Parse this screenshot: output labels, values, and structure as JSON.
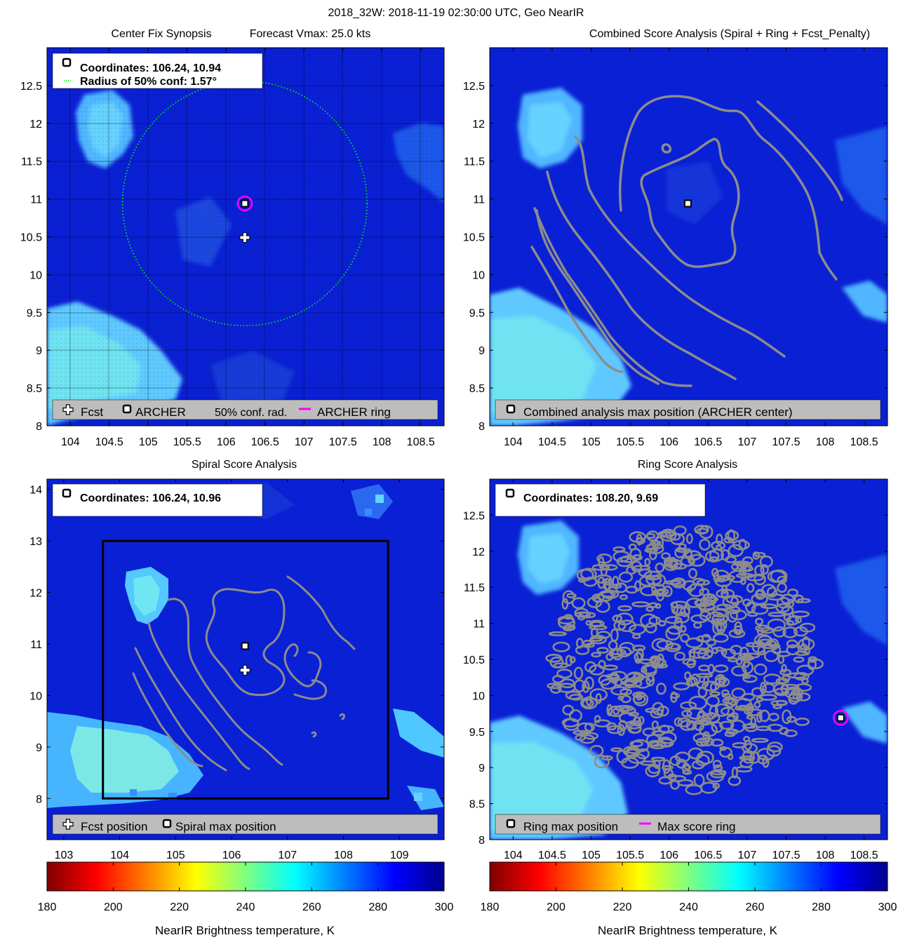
{
  "figure_title": "2018_32W: 2018-11-19 02:30:00 UTC, Geo NearIR",
  "colormap": [
    "#7f0000",
    "#ff0000",
    "#ff7f00",
    "#ffff00",
    "#7fff7f",
    "#00ffff",
    "#007fff",
    "#0000ff",
    "#00008f"
  ],
  "chart_data": [
    {
      "id": "center-fix",
      "type": "heatmap",
      "title_left": "Center Fix Synopsis",
      "title_right": "Forecast Vmax: 25.0 kts",
      "xlim": [
        103.7,
        108.8
      ],
      "ylim": [
        8.0,
        13.0
      ],
      "xticks": [
        "104",
        "104.5",
        "105",
        "105.5",
        "106",
        "106.5",
        "107",
        "107.5",
        "108",
        "108.5"
      ],
      "xtick_values": [
        104,
        104.5,
        105,
        105.5,
        106,
        106.5,
        107,
        107.5,
        108,
        108.5
      ],
      "yticks": [
        "8",
        "8.5",
        "9",
        "9.5",
        "10",
        "10.5",
        "11",
        "11.5",
        "12",
        "12.5"
      ],
      "ytick_values": [
        8,
        8.5,
        9,
        9.5,
        10,
        10.5,
        11,
        11.5,
        12,
        12.5
      ],
      "info_lines": [
        "Coordinates: 106.24, 10.94",
        "Radius of 50% conf: 1.57°"
      ],
      "legend": [
        "Fcst",
        "ARCHER",
        "50% conf. rad.",
        "ARCHER ring"
      ],
      "fcst_position": [
        106.24,
        10.49
      ],
      "archer_center": [
        106.24,
        10.94
      ],
      "conf_radius_deg": 1.57,
      "ring_color": "#ff00ff",
      "conf_color": "#00ff00"
    },
    {
      "id": "combined",
      "type": "heatmap",
      "title": "Combined Score Analysis (Spiral + Ring + Fcst_Penalty)",
      "xlim": [
        103.7,
        108.8
      ],
      "ylim": [
        8.0,
        13.0
      ],
      "xticks": [
        "104",
        "104.5",
        "105",
        "105.5",
        "106",
        "106.5",
        "107",
        "107.5",
        "108",
        "108.5"
      ],
      "xtick_values": [
        104,
        104.5,
        105,
        105.5,
        106,
        106.5,
        107,
        107.5,
        108,
        108.5
      ],
      "yticks": [
        "8",
        "8.5",
        "9",
        "9.5",
        "10",
        "10.5",
        "11",
        "11.5",
        "12",
        "12.5"
      ],
      "ytick_values": [
        8,
        8.5,
        9,
        9.5,
        10,
        10.5,
        11,
        11.5,
        12,
        12.5
      ],
      "legend": [
        "Combined analysis max position (ARCHER center)"
      ],
      "max_position": [
        106.24,
        10.94
      ]
    },
    {
      "id": "spiral",
      "type": "heatmap",
      "title": "Spiral Score Analysis",
      "xlim": [
        102.7,
        109.8
      ],
      "ylim": [
        7.2,
        14.2
      ],
      "xticks": [
        "103",
        "104",
        "105",
        "106",
        "107",
        "108",
        "109"
      ],
      "xtick_values": [
        103,
        104,
        105,
        106,
        107,
        108,
        109
      ],
      "yticks": [
        "8",
        "9",
        "10",
        "11",
        "12",
        "13",
        "14"
      ],
      "ytick_values": [
        8,
        9,
        10,
        11,
        12,
        13,
        14
      ],
      "info_lines": [
        "Coordinates: 106.24, 10.96"
      ],
      "legend": [
        "Fcst position",
        "Spiral max position"
      ],
      "fcst_position": [
        106.24,
        10.49
      ],
      "max_position": [
        106.24,
        10.96
      ],
      "search_box": [
        103.7,
        108.8,
        8.0,
        13.0
      ]
    },
    {
      "id": "ring",
      "type": "heatmap",
      "title": "Ring Score Analysis",
      "xlim": [
        103.7,
        108.8
      ],
      "ylim": [
        8.0,
        13.0
      ],
      "xticks": [
        "104",
        "104.5",
        "105",
        "105.5",
        "106",
        "106.5",
        "107",
        "107.5",
        "108",
        "108.5"
      ],
      "xtick_values": [
        104,
        104.5,
        105,
        105.5,
        106,
        106.5,
        107,
        107.5,
        108,
        108.5
      ],
      "yticks": [
        "8",
        "8.5",
        "9",
        "9.5",
        "10",
        "10.5",
        "11",
        "11.5",
        "12",
        "12.5"
      ],
      "ytick_values": [
        8,
        8.5,
        9,
        9.5,
        10,
        10.5,
        11,
        11.5,
        12,
        12.5
      ],
      "info_lines": [
        "Coordinates: 108.20, 9.69"
      ],
      "legend": [
        "Ring max position",
        "Max score ring"
      ],
      "max_position": [
        108.2,
        9.69
      ],
      "ring_color": "#ff00ff"
    }
  ],
  "colorbars": [
    {
      "id": "colorbar-left",
      "ticks": [
        "180",
        "200",
        "220",
        "240",
        "260",
        "280",
        "300"
      ],
      "tick_values": [
        180,
        200,
        220,
        240,
        260,
        280,
        300
      ],
      "range": [
        180,
        300
      ],
      "label": "NearIR Brightness temperature, K"
    },
    {
      "id": "colorbar-right",
      "ticks": [
        "180",
        "200",
        "220",
        "240",
        "260",
        "280",
        "300"
      ],
      "tick_values": [
        180,
        200,
        220,
        240,
        260,
        280,
        300
      ],
      "range": [
        180,
        300
      ],
      "label": "NearIR Brightness temperature, K"
    }
  ]
}
